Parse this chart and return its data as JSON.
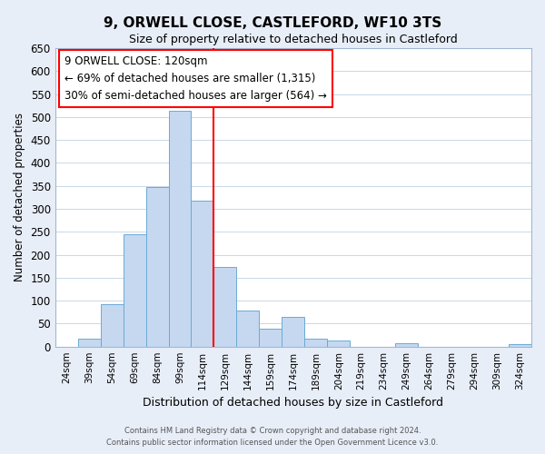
{
  "title": "9, ORWELL CLOSE, CASTLEFORD, WF10 3TS",
  "subtitle": "Size of property relative to detached houses in Castleford",
  "xlabel": "Distribution of detached houses by size in Castleford",
  "ylabel": "Number of detached properties",
  "footer_line1": "Contains HM Land Registry data © Crown copyright and database right 2024.",
  "footer_line2": "Contains public sector information licensed under the Open Government Licence v3.0.",
  "bar_labels": [
    "24sqm",
    "39sqm",
    "54sqm",
    "69sqm",
    "84sqm",
    "99sqm",
    "114sqm",
    "129sqm",
    "144sqm",
    "159sqm",
    "174sqm",
    "189sqm",
    "204sqm",
    "219sqm",
    "234sqm",
    "249sqm",
    "264sqm",
    "279sqm",
    "294sqm",
    "309sqm",
    "324sqm"
  ],
  "bar_values": [
    0,
    18,
    93,
    245,
    348,
    513,
    318,
    173,
    78,
    38,
    65,
    18,
    13,
    0,
    0,
    8,
    0,
    0,
    0,
    0,
    5
  ],
  "bar_color": "#c5d8f0",
  "bar_edge_color": "#6aaad4",
  "vline_color": "red",
  "annotation_title": "9 ORWELL CLOSE: 120sqm",
  "annotation_line1": "← 69% of detached houses are smaller (1,315)",
  "annotation_line2": "30% of semi-detached houses are larger (564) →",
  "annotation_box_edge": "red",
  "ylim": [
    0,
    650
  ],
  "yticks": [
    0,
    50,
    100,
    150,
    200,
    250,
    300,
    350,
    400,
    450,
    500,
    550,
    600,
    650
  ],
  "background_color": "#e8eef8",
  "plot_background_color": "#ffffff",
  "grid_color": "#c8d8e8"
}
